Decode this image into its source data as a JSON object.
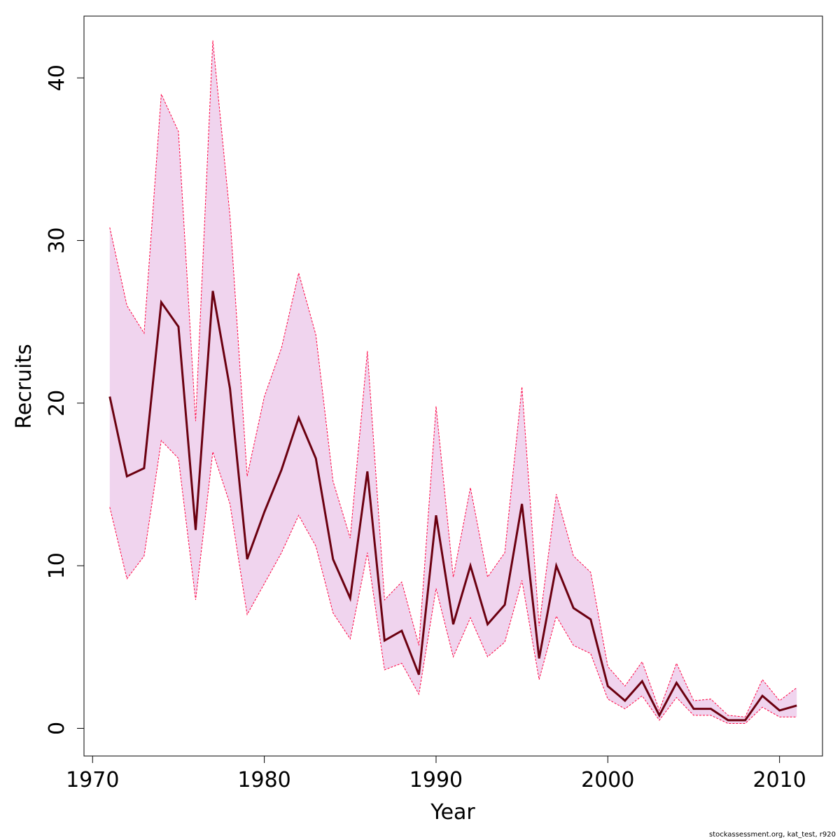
{
  "chart_data": {
    "type": "line",
    "title": "",
    "xlabel": "Year",
    "ylabel": "Recruits",
    "xlim": [
      1969.5,
      2012.5
    ],
    "ylim": [
      -1.7,
      43.8
    ],
    "x_ticks": [
      1970,
      1980,
      1990,
      2000,
      2010
    ],
    "y_ticks": [
      0,
      10,
      20,
      30,
      40
    ],
    "grid": false,
    "legend": "none",
    "colors": {
      "line": "#6b0010",
      "band_fill": "#f0d4ee",
      "band_edge": "#ff0040"
    },
    "x": [
      1971,
      1972,
      1973,
      1974,
      1975,
      1976,
      1977,
      1978,
      1979,
      1980,
      1981,
      1982,
      1983,
      1984,
      1985,
      1986,
      1987,
      1988,
      1989,
      1990,
      1991,
      1992,
      1993,
      1994,
      1995,
      1996,
      1997,
      1998,
      1999,
      2000,
      2001,
      2002,
      2003,
      2004,
      2005,
      2006,
      2007,
      2008,
      2009,
      2010,
      2011
    ],
    "series": [
      {
        "values": [
          20.4,
          15.5,
          16.0,
          26.2,
          24.7,
          12.2,
          26.9,
          20.9,
          10.4,
          13.3,
          15.9,
          19.1,
          16.6,
          10.4,
          8.0,
          15.8,
          5.4,
          6.0,
          3.3,
          13.1,
          6.4,
          10.0,
          6.4,
          7.6,
          13.8,
          4.3,
          10.0,
          7.4,
          6.7,
          2.6,
          1.7,
          2.9,
          0.8,
          2.8,
          1.2,
          1.2,
          0.5,
          0.5,
          2.0,
          1.1,
          1.4
        ],
        "lower": [
          13.6,
          9.2,
          10.6,
          17.7,
          16.6,
          7.9,
          17.0,
          13.8,
          7.0,
          8.9,
          10.8,
          13.1,
          11.2,
          7.1,
          5.5,
          10.8,
          3.6,
          4.0,
          2.1,
          8.6,
          4.4,
          6.8,
          4.4,
          5.3,
          9.1,
          3.0,
          6.9,
          5.1,
          4.6,
          1.8,
          1.2,
          2.0,
          0.5,
          1.9,
          0.8,
          0.8,
          0.3,
          0.3,
          1.3,
          0.7,
          0.7
        ],
        "upper": [
          30.8,
          26.0,
          24.3,
          39.0,
          36.7,
          18.9,
          42.3,
          31.5,
          15.5,
          20.4,
          23.4,
          28.0,
          24.2,
          15.2,
          11.7,
          23.2,
          7.9,
          9.0,
          5.1,
          19.8,
          9.3,
          14.8,
          9.3,
          10.8,
          21.0,
          6.3,
          14.4,
          10.6,
          9.6,
          3.8,
          2.6,
          4.1,
          1.1,
          4.0,
          1.7,
          1.8,
          0.8,
          0.7,
          3.0,
          1.7,
          2.5
        ]
      }
    ]
  },
  "credit": "stockassessment.org, kat_test, r920"
}
